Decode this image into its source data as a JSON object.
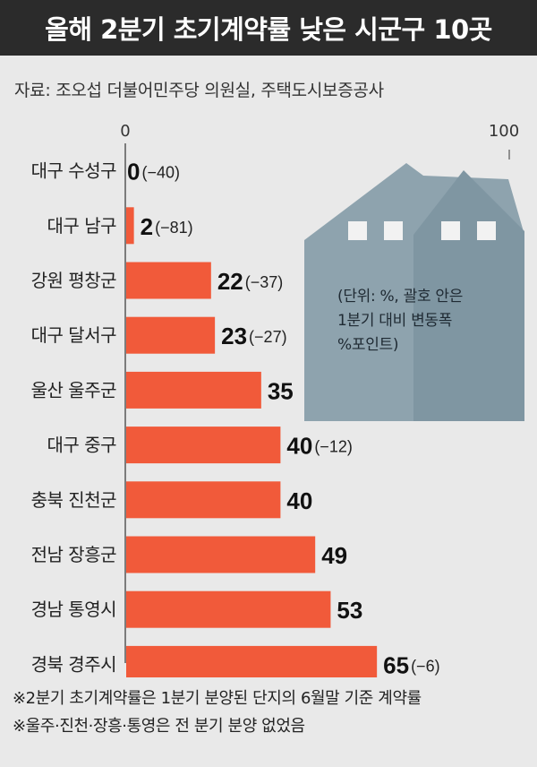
{
  "title": "올해 2분기 초기계약률 낮은 시군구 10곳",
  "source": "자료: 조오섭 더불어민주당 의원실, 주택도시보증공사",
  "unit_note": [
    "(단위: %, 괄호 안은",
    "1분기 대비 변동폭",
    "%포인트)"
  ],
  "notes": [
    "※2분기 초기계약률은 1분기 분양된 단지의 6월말 기준 계약률",
    "※울주·진천·장흥·통영은 전 분기 분양 없었음"
  ],
  "colors": {
    "bar": "#f15a3a",
    "background": "#e9e9e9",
    "title_bg": "#2b2b2b",
    "house": "#8ea3ae"
  },
  "icons": [
    "house-icon"
  ],
  "chart_data": {
    "type": "bar",
    "orientation": "horizontal",
    "title": "올해 2분기 초기계약률 낮은 시군구 10곳",
    "xlim": [
      0,
      100
    ],
    "x_ticks": [
      "0",
      "100"
    ],
    "categories": [
      "대구 수성구",
      "대구 남구",
      "강원 평창군",
      "대구 달서구",
      "울산 울주군",
      "대구 중구",
      "충북 진천군",
      "전남 장흥군",
      "경남 통영시",
      "경북 경주시"
    ],
    "values": [
      0,
      2,
      22,
      23,
      35,
      40,
      40,
      49,
      53,
      65
    ],
    "value_labels": [
      "0",
      "2",
      "22",
      "23",
      "35",
      "40",
      "40",
      "49",
      "53",
      "65"
    ],
    "change_labels": [
      "(−40)",
      "(−81)",
      "(−37)",
      "(−27)",
      "",
      "(−12)",
      "",
      "",
      "",
      "(−6)"
    ]
  }
}
